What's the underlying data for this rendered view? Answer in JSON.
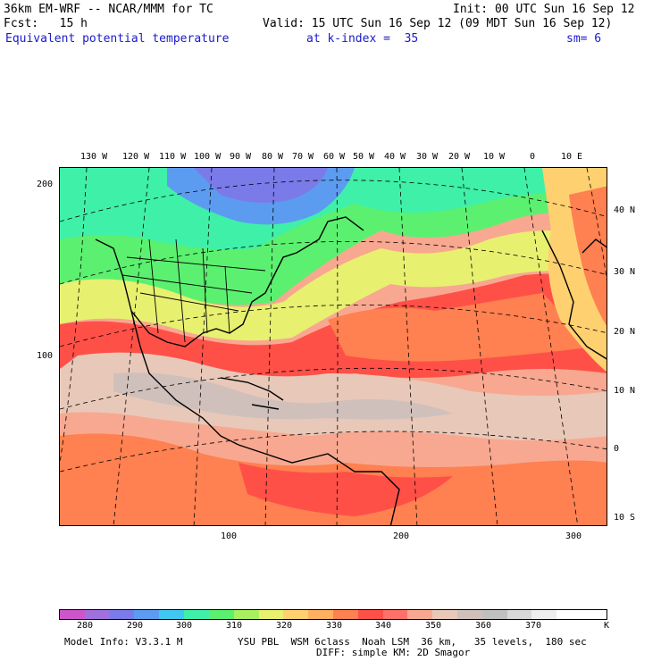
{
  "header": {
    "model_title": "36km EM-WRF -- NCAR/MMM for TC",
    "init": "Init: 00 UTC Sun 16 Sep 12",
    "fcst": "Fcst:   15 h",
    "valid": "Valid: 15 UTC Sun 16 Sep 12 (09 MDT Sun 16 Sep 12)",
    "field": "Equivalent potential temperature",
    "level": "at k-index =  35",
    "smooth": "sm= 6"
  },
  "map": {
    "top_lon_labels": [
      "130 W",
      "120 W",
      "110 W",
      "100 W",
      "90 W",
      "80 W",
      "70 W",
      "60 W",
      "50 W",
      "40 W",
      "30 W",
      "20 W",
      "10 W",
      "0",
      "10 E"
    ],
    "right_lat_labels": [
      "40 N",
      "30 N",
      "20 N",
      "10 N",
      "0",
      "10 S"
    ],
    "left_y_labels": [
      "200",
      "100"
    ],
    "bottom_x_labels": [
      "100",
      "200",
      "300"
    ]
  },
  "colorbar": {
    "colors": [
      "#cc55cc",
      "#a070dd",
      "#7a7ae8",
      "#5c9cf0",
      "#40c8f0",
      "#3ff0a8",
      "#5cf070",
      "#a8f060",
      "#e8f070",
      "#ffd070",
      "#ffb060",
      "#ff8050",
      "#ff5048",
      "#ff7068",
      "#f8a890",
      "#e8c8b8",
      "#d0c0bc",
      "#c0c0c0",
      "#d8d8d8",
      "#eeeeee",
      "#ffffff",
      "#ffffff"
    ],
    "labels": [
      "280",
      "290",
      "300",
      "310",
      "320",
      "330",
      "340",
      "350",
      "360",
      "370",
      "K"
    ]
  },
  "footer": {
    "model_info": "Model Info: V3.3.1 M",
    "physics": "YSU PBL  WSM 6class  Noah LSM  36 km,   35 levels,  180 sec",
    "diff": "DIFF: simple KM: 2D Smagor"
  }
}
